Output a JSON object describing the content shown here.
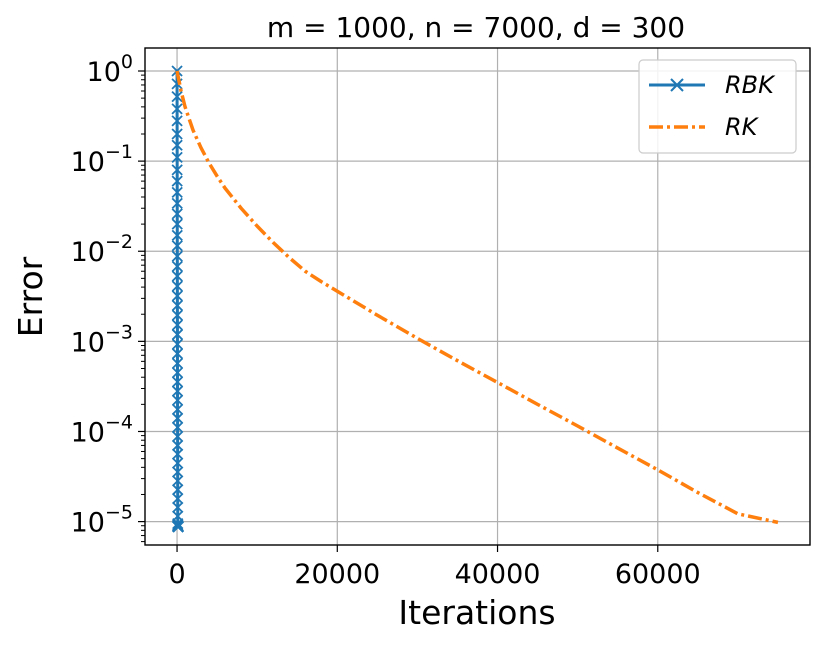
{
  "chart_data": {
    "type": "line",
    "title": "m = 1000, n = 7000, d = 300",
    "xlabel": "Iterations",
    "ylabel": "Error",
    "xlim": [
      -4000,
      79000
    ],
    "ylim": [
      5.5e-06,
      1.8
    ],
    "yscale": "log",
    "grid": true,
    "legend_position": "top-right",
    "x_ticks": [
      0,
      20000,
      40000,
      60000
    ],
    "y_ticks": [
      {
        "value": 1,
        "base": "10",
        "exp": "0"
      },
      {
        "value": 0.1,
        "base": "10",
        "exp": "−1"
      },
      {
        "value": 0.01,
        "base": "10",
        "exp": "−2"
      },
      {
        "value": 0.001,
        "base": "10",
        "exp": "−3"
      },
      {
        "value": 0.0001,
        "base": "10",
        "exp": "−4"
      },
      {
        "value": 1e-05,
        "base": "10",
        "exp": "−5"
      }
    ],
    "series": [
      {
        "name": "RBK",
        "color": "#1f77b4",
        "linestyle": "solid",
        "marker": "x",
        "x": [
          0,
          2,
          4,
          6,
          8,
          10,
          12,
          14,
          16,
          18,
          20,
          22,
          24,
          26,
          28,
          30,
          32,
          34,
          36,
          38,
          40,
          42,
          44,
          46,
          48,
          50,
          52,
          54,
          56,
          58,
          60,
          62,
          64,
          66,
          68,
          70,
          72,
          74,
          76,
          78,
          80,
          82,
          84,
          86,
          88,
          90,
          92,
          94,
          96,
          98,
          100,
          102,
          104,
          106,
          108,
          110,
          112,
          114,
          116,
          118,
          120,
          122,
          124,
          126,
          128,
          130,
          132,
          134,
          136,
          138,
          140,
          142,
          144,
          146,
          148,
          150,
          152,
          154,
          156,
          158,
          160
        ],
        "y": [
          1,
          0.72,
          0.52,
          0.38,
          0.28,
          0.2,
          0.15,
          0.11,
          0.08,
          0.06,
          0.045,
          0.034,
          0.026,
          0.02,
          0.015,
          0.0115,
          0.0088,
          0.0068,
          0.0053,
          0.0041,
          0.0032,
          0.0025,
          0.00195,
          0.00152,
          0.00119,
          0.00093,
          0.00073,
          0.00057,
          0.00045,
          0.000355,
          0.00028,
          0.000222,
          0.000176,
          0.00014,
          0.000111,
          8.8e-05,
          7e-05,
          5.6e-05,
          4.45e-05,
          3.55e-05,
          2.83e-05,
          2.26e-05,
          1.8e-05,
          1.44e-05,
          1.15e-05,
          9.5e-06,
          9.2e-06,
          9e-06,
          8.9e-06,
          8.8e-06,
          8.8e-06,
          8.8e-06,
          8.8e-06,
          8.8e-06,
          8.8e-06,
          8.8e-06,
          8.8e-06,
          8.8e-06,
          8.8e-06,
          8.8e-06,
          8.8e-06,
          8.8e-06,
          8.8e-06,
          8.8e-06,
          8.8e-06,
          8.8e-06,
          8.8e-06,
          8.8e-06,
          8.8e-06,
          8.8e-06,
          8.8e-06,
          8.8e-06,
          8.8e-06,
          8.8e-06,
          8.8e-06,
          8.8e-06,
          8.8e-06,
          8.8e-06,
          8.8e-06,
          8.8e-06,
          8.8e-06
        ]
      },
      {
        "name": "RK",
        "color": "#ff7f0e",
        "linestyle": "dashdot",
        "marker": "none",
        "x": [
          0,
          500,
          1000,
          2000,
          3000,
          4000,
          5000,
          6000,
          8000,
          10000,
          12000,
          14000,
          16000,
          18000,
          20000,
          25000,
          30000,
          35000,
          40000,
          45000,
          50000,
          55000,
          60000,
          65000,
          70000,
          75000
        ],
        "y": [
          1,
          0.6,
          0.4,
          0.22,
          0.14,
          0.095,
          0.068,
          0.05,
          0.03,
          0.019,
          0.0125,
          0.0085,
          0.006,
          0.0046,
          0.0036,
          0.00195,
          0.00108,
          0.00061,
          0.00035,
          0.0002,
          0.000115,
          6.55e-05,
          3.75e-05,
          2.1e-05,
          1.22e-05,
          9.8e-06
        ]
      }
    ]
  }
}
